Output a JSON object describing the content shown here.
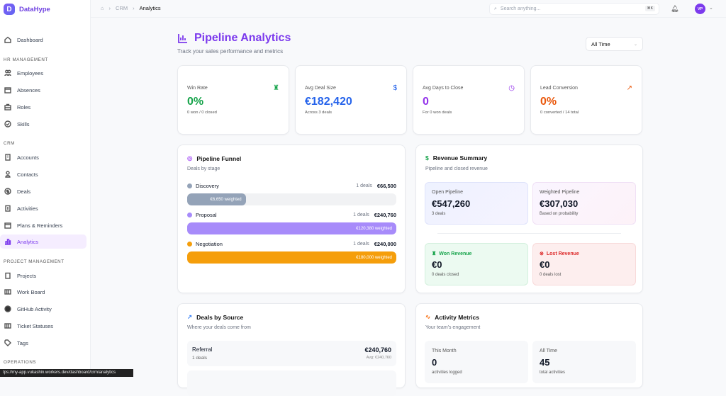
{
  "app": {
    "logo_letter": "D",
    "name": "DataHype"
  },
  "sidebar": {
    "dashboard": "Dashboard",
    "sections": [
      "HR MANAGEMENT",
      "CRM",
      "PROJECT MANAGEMENT",
      "OPERATIONS"
    ],
    "hr": [
      "Employees",
      "Absences",
      "Roles",
      "Skills"
    ],
    "crm": [
      "Accounts",
      "Contacts",
      "Deals",
      "Activities",
      "Plans & Reminders",
      "Analytics"
    ],
    "pm": [
      "Projects",
      "Work Board",
      "GitHub Activity",
      "Ticket Statuses",
      "Tags"
    ],
    "active": "Analytics"
  },
  "breadcrumb": [
    "CRM",
    "Analytics"
  ],
  "search": {
    "placeholder": "Search anything...",
    "shortcut": "⌘K"
  },
  "user": {
    "initials": "VP"
  },
  "page": {
    "title": "Pipeline Analytics",
    "subtitle": "Track your sales performance and metrics",
    "range": "All Time"
  },
  "stats": [
    {
      "label": "Win Rate",
      "value": "0%",
      "sub": "0 won / 0 closed",
      "icon": "trophy-icon",
      "color": "#16a34a"
    },
    {
      "label": "Avg Deal Size",
      "value": "€182,420",
      "sub": "Across 3 deals",
      "icon": "dollar-icon",
      "color": "#2563eb"
    },
    {
      "label": "Avg Days to Close",
      "value": "0",
      "sub": "For 0 won deals",
      "icon": "clock-icon",
      "color": "#9333ea"
    },
    {
      "label": "Lead Conversion",
      "value": "0%",
      "sub": "0 converted / 14 total",
      "icon": "trending-up-icon",
      "color": "#ea580c"
    }
  ],
  "funnel": {
    "title": "Pipeline Funnel",
    "subtitle": "Deals by stage",
    "stages": [
      {
        "name": "Discovery",
        "count": "1 deals",
        "amount": "€66,500",
        "weighted": "€6,650 weighted",
        "fill_pct": 28,
        "color": "#94a3b8"
      },
      {
        "name": "Proposal",
        "count": "1 deals",
        "amount": "€240,760",
        "weighted": "€120,380 weighted",
        "fill_pct": 100,
        "color": "#a78bfa"
      },
      {
        "name": "Negotiation",
        "count": "1 deals",
        "amount": "€240,000",
        "weighted": "€180,000 weighted",
        "fill_pct": 100,
        "color": "#f59e0b"
      }
    ]
  },
  "revenue": {
    "title": "Revenue Summary",
    "subtitle": "Pipeline and closed revenue",
    "open": {
      "label": "Open Pipeline",
      "value": "€547,260",
      "sub": "3 deals"
    },
    "weighted": {
      "label": "Weighted Pipeline",
      "value": "€307,030",
      "sub": "Based on probability"
    },
    "won": {
      "label": "Won Revenue",
      "value": "€0",
      "sub": "0 deals closed"
    },
    "lost": {
      "label": "Lost Revenue",
      "value": "€0",
      "sub": "0 deals lost"
    }
  },
  "sources": {
    "title": "Deals by Source",
    "subtitle": "Where your deals come from",
    "items": [
      {
        "name": "Referral",
        "count": "1 deals",
        "amount": "€240,760",
        "avg": "Avg: €240,760"
      }
    ]
  },
  "activity": {
    "title": "Activity Metrics",
    "subtitle": "Your team's engagement",
    "month": {
      "label": "This Month",
      "value": "0",
      "sub": "activities logged"
    },
    "all": {
      "label": "All Time",
      "value": "45",
      "sub": "total activities"
    }
  },
  "statusbar": "tps://my-app.vukashin.workers.dev/dashboard/crm/analytics"
}
